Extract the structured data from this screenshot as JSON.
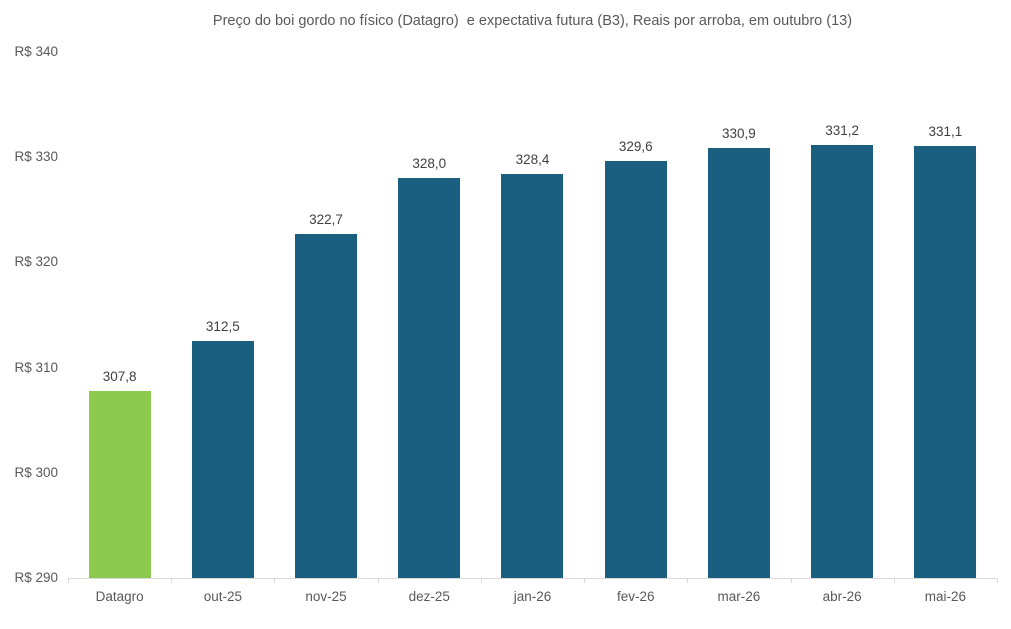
{
  "chart_data": {
    "type": "bar",
    "title": "Preço do boi gordo no físico (Datagro)  e expectativa futura (B3), Reais por arroba, em outubro (13)",
    "categories": [
      "Datagro",
      "out-25",
      "nov-25",
      "dez-25",
      "jan-26",
      "fev-26",
      "mar-26",
      "abr-26",
      "mai-26"
    ],
    "values": [
      307.8,
      312.5,
      322.7,
      328.0,
      328.4,
      329.6,
      330.9,
      331.2,
      331.1
    ],
    "value_labels": [
      "307,8",
      "312,5",
      "322,7",
      "328,0",
      "328,4",
      "329,6",
      "330,9",
      "331,2",
      "331,1"
    ],
    "y_ticks": [
      "R$ 340",
      "R$ 330",
      "R$ 320",
      "R$ 310",
      "R$ 300",
      "R$ 290"
    ],
    "y_tick_values": [
      340,
      330,
      320,
      310,
      300,
      290
    ],
    "ylim": [
      290,
      340
    ],
    "xlabel": "",
    "ylabel": "",
    "grid": false,
    "legend": "none",
    "highlight_index": 0,
    "colors": {
      "highlight_bar": "#8DC94F",
      "default_bar": "#1A5E80",
      "axis_line": "#d9d9d9",
      "title_text": "#595959",
      "axis_text": "#595959",
      "value_text": "#404040"
    }
  }
}
